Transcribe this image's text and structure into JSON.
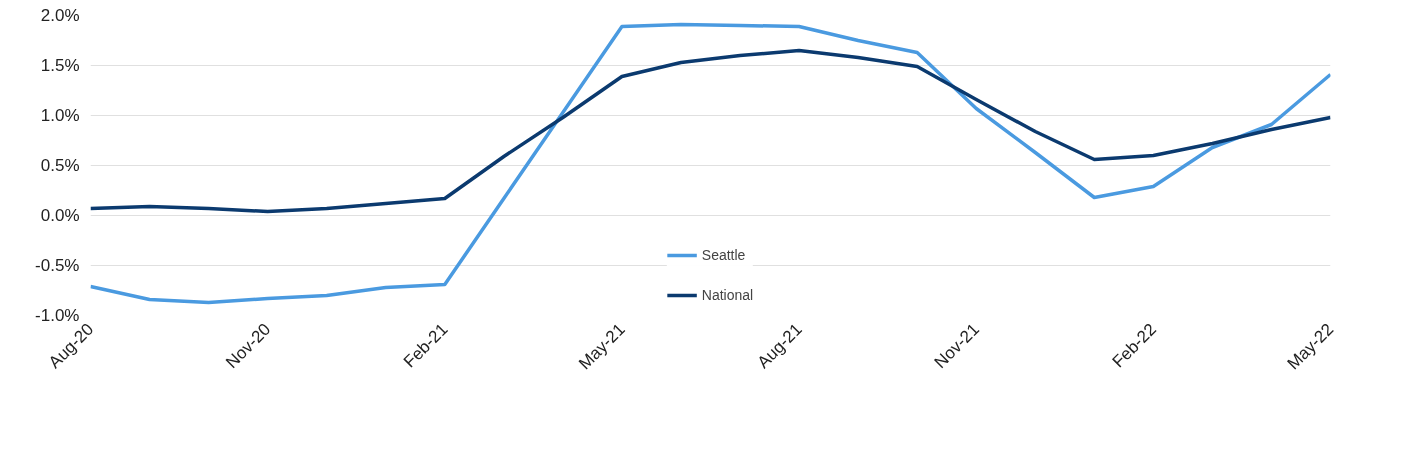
{
  "chart_data": {
    "type": "line",
    "x": [
      "2020-08",
      "2020-09",
      "2020-10",
      "2020-11",
      "2020-12",
      "2021-01",
      "2021-02",
      "2021-03",
      "2021-04",
      "2021-05",
      "2021-06",
      "2021-07",
      "2021-08",
      "2021-09",
      "2021-10",
      "2021-11",
      "2021-12",
      "2022-01",
      "2022-02",
      "2022-03",
      "2022-04",
      "2022-05"
    ],
    "series": [
      {
        "name": "Seattle",
        "color": "#4a9ae0",
        "values": [
          -0.71,
          -0.84,
          -0.87,
          -0.83,
          -0.8,
          -0.72,
          -0.69,
          0.17,
          1.03,
          1.89,
          1.91,
          1.9,
          1.89,
          1.75,
          1.63,
          1.07,
          0.63,
          0.18,
          0.29,
          0.68,
          0.91,
          1.41
        ]
      },
      {
        "name": "National",
        "color": "#0b3a6f",
        "values": [
          0.07,
          0.09,
          0.07,
          0.04,
          0.07,
          0.12,
          0.17,
          0.59,
          0.98,
          1.39,
          1.53,
          1.6,
          1.65,
          1.58,
          1.49,
          1.16,
          0.84,
          0.56,
          0.6,
          0.72,
          0.86,
          0.98
        ]
      }
    ],
    "xlim": [
      "2020-08",
      "2022-05"
    ],
    "xticks": [
      {
        "value": "2020-08",
        "label": "Aug-20"
      },
      {
        "value": "2020-11",
        "label": "Nov-20"
      },
      {
        "value": "2021-02",
        "label": "Feb-21"
      },
      {
        "value": "2021-05",
        "label": "May-21"
      },
      {
        "value": "2021-08",
        "label": "Aug-21"
      },
      {
        "value": "2021-11",
        "label": "Nov-21"
      },
      {
        "value": "2022-02",
        "label": "Feb-22"
      },
      {
        "value": "2022-05",
        "label": "May-22"
      }
    ],
    "ylim": [
      -1.0,
      2.0
    ],
    "yticks": [
      {
        "value": -1.0,
        "label": "-1.0%"
      },
      {
        "value": -0.5,
        "label": "-0.5%"
      },
      {
        "value": 0.0,
        "label": "0.0%"
      },
      {
        "value": 0.5,
        "label": "0.5%"
      },
      {
        "value": 1.0,
        "label": "1.0%"
      },
      {
        "value": 1.5,
        "label": "1.5%"
      },
      {
        "value": 2.0,
        "label": "2.0%"
      }
    ],
    "grid": "y",
    "legend": "bottom",
    "marker": "none",
    "line_style": "solid"
  }
}
